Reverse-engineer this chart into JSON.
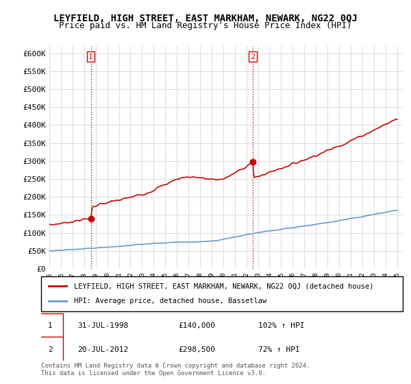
{
  "title": "LEYFIELD, HIGH STREET, EAST MARKHAM, NEWARK, NG22 0QJ",
  "subtitle": "Price paid vs. HM Land Registry's House Price Index (HPI)",
  "ylabel_ticks": [
    "£0",
    "£50K",
    "£100K",
    "£150K",
    "£200K",
    "£250K",
    "£300K",
    "£350K",
    "£400K",
    "£450K",
    "£500K",
    "£550K",
    "£600K"
  ],
  "ytick_values": [
    0,
    50000,
    100000,
    150000,
    200000,
    250000,
    300000,
    350000,
    400000,
    450000,
    500000,
    550000,
    600000
  ],
  "xlim_start": 1995.0,
  "xlim_end": 2025.5,
  "ylim_min": 0,
  "ylim_max": 620000,
  "property_color": "#cc0000",
  "hpi_color": "#6699cc",
  "sale1_date": 1998.58,
  "sale1_price": 140000,
  "sale2_date": 2012.55,
  "sale2_price": 298500,
  "legend_property": "LEYFIELD, HIGH STREET, EAST MARKHAM, NEWARK, NG22 0QJ (detached house)",
  "legend_hpi": "HPI: Average price, detached house, Bassetlaw",
  "table_row1_label": "1",
  "table_row1_date": "31-JUL-1998",
  "table_row1_price": "£140,000",
  "table_row1_hpi": "102% ↑ HPI",
  "table_row2_label": "2",
  "table_row2_date": "20-JUL-2012",
  "table_row2_price": "£298,500",
  "table_row2_hpi": "72% ↑ HPI",
  "copyright_text": "Contains HM Land Registry data © Crown copyright and database right 2024.\nThis data is licensed under the Open Government Licence v3.0.",
  "bg_color": "#ffffff",
  "grid_color": "#dddddd",
  "vline_color": "#cc0000",
  "vline_style": ":",
  "title_fontsize": 10,
  "subtitle_fontsize": 9,
  "tick_fontsize": 8
}
